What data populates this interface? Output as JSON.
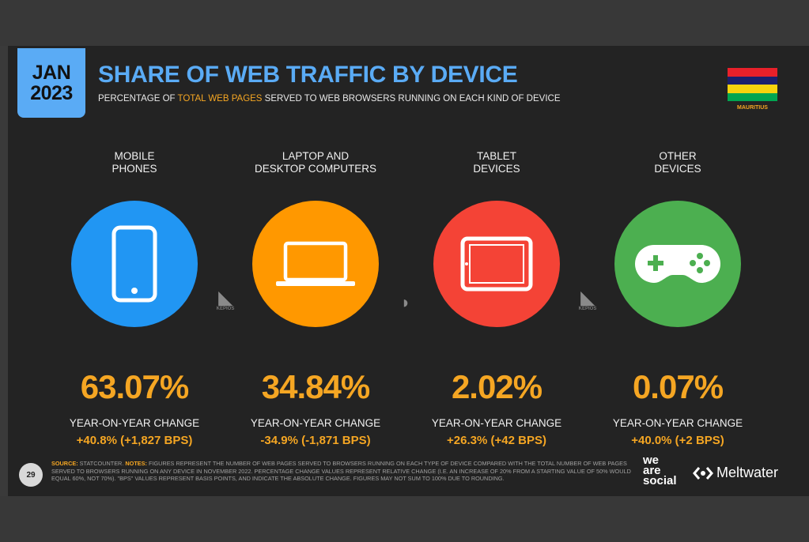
{
  "header": {
    "date_line1": "JAN",
    "date_line2": "2023",
    "title": "SHARE OF WEB TRAFFIC BY DEVICE",
    "subtitle_pre": "PERCENTAGE OF ",
    "subtitle_highlight": "TOTAL WEB PAGES",
    "subtitle_post": " SERVED TO WEB BROWSERS RUNNING ON EACH KIND OF DEVICE"
  },
  "flag": {
    "label": "MAURITIUS",
    "stripes": [
      "#e8202a",
      "#1a206d",
      "#f5d20e",
      "#00a551"
    ]
  },
  "devices": [
    {
      "label_line1": "MOBILE",
      "label_line2": "PHONES",
      "icon": "mobile-phone-icon",
      "color": "#2196f3",
      "share": "63.07%",
      "yoy_label": "YEAR-ON-YEAR CHANGE",
      "yoy_value": "+40.8% (+1,827 BPS)"
    },
    {
      "label_line1": "LAPTOP AND",
      "label_line2": "DESKTOP COMPUTERS",
      "icon": "laptop-icon",
      "color": "#ff9800",
      "share": "34.84%",
      "yoy_label": "YEAR-ON-YEAR CHANGE",
      "yoy_value": "-34.9% (-1,871 BPS)"
    },
    {
      "label_line1": "TABLET",
      "label_line2": "DEVICES",
      "icon": "tablet-icon",
      "color": "#f44336",
      "share": "2.02%",
      "yoy_label": "YEAR-ON-YEAR CHANGE",
      "yoy_value": "+26.3% (+42 BPS)"
    },
    {
      "label_line1": "OTHER",
      "label_line2": "DEVICES",
      "icon": "game-controller-icon",
      "color": "#4caf50",
      "share": "0.07%",
      "yoy_label": "YEAR-ON-YEAR CHANGE",
      "yoy_value": "+40.0% (+2 BPS)"
    }
  ],
  "watermark": {
    "text": "KEPIOS"
  },
  "footer": {
    "page_number": "29",
    "source_label": "SOURCE:",
    "source_text": " STATCOUNTER. ",
    "notes_label": "NOTES:",
    "notes_text": " FIGURES REPRESENT THE NUMBER OF WEB PAGES SERVED TO BROWSERS RUNNING ON EACH TYPE OF DEVICE COMPARED WITH THE TOTAL NUMBER OF WEB PAGES SERVED TO BROWSERS RUNNING ON ANY DEVICE IN NOVEMBER 2022. PERCENTAGE CHANGE VALUES REPRESENT RELATIVE CHANGE (I.E. AN INCREASE OF 20% FROM A STARTING VALUE OF 50% WOULD EQUAL 60%, NOT 70%). \"BPS\" VALUES REPRESENT BASIS POINTS, AND INDICATE THE ABSOLUTE CHANGE. FIGURES MAY NOT SUM TO 100% DUE TO ROUNDING.",
    "brand1_line1": "we",
    "brand1_line2": "are",
    "brand1_line3": "social",
    "brand2": "Meltwater"
  }
}
